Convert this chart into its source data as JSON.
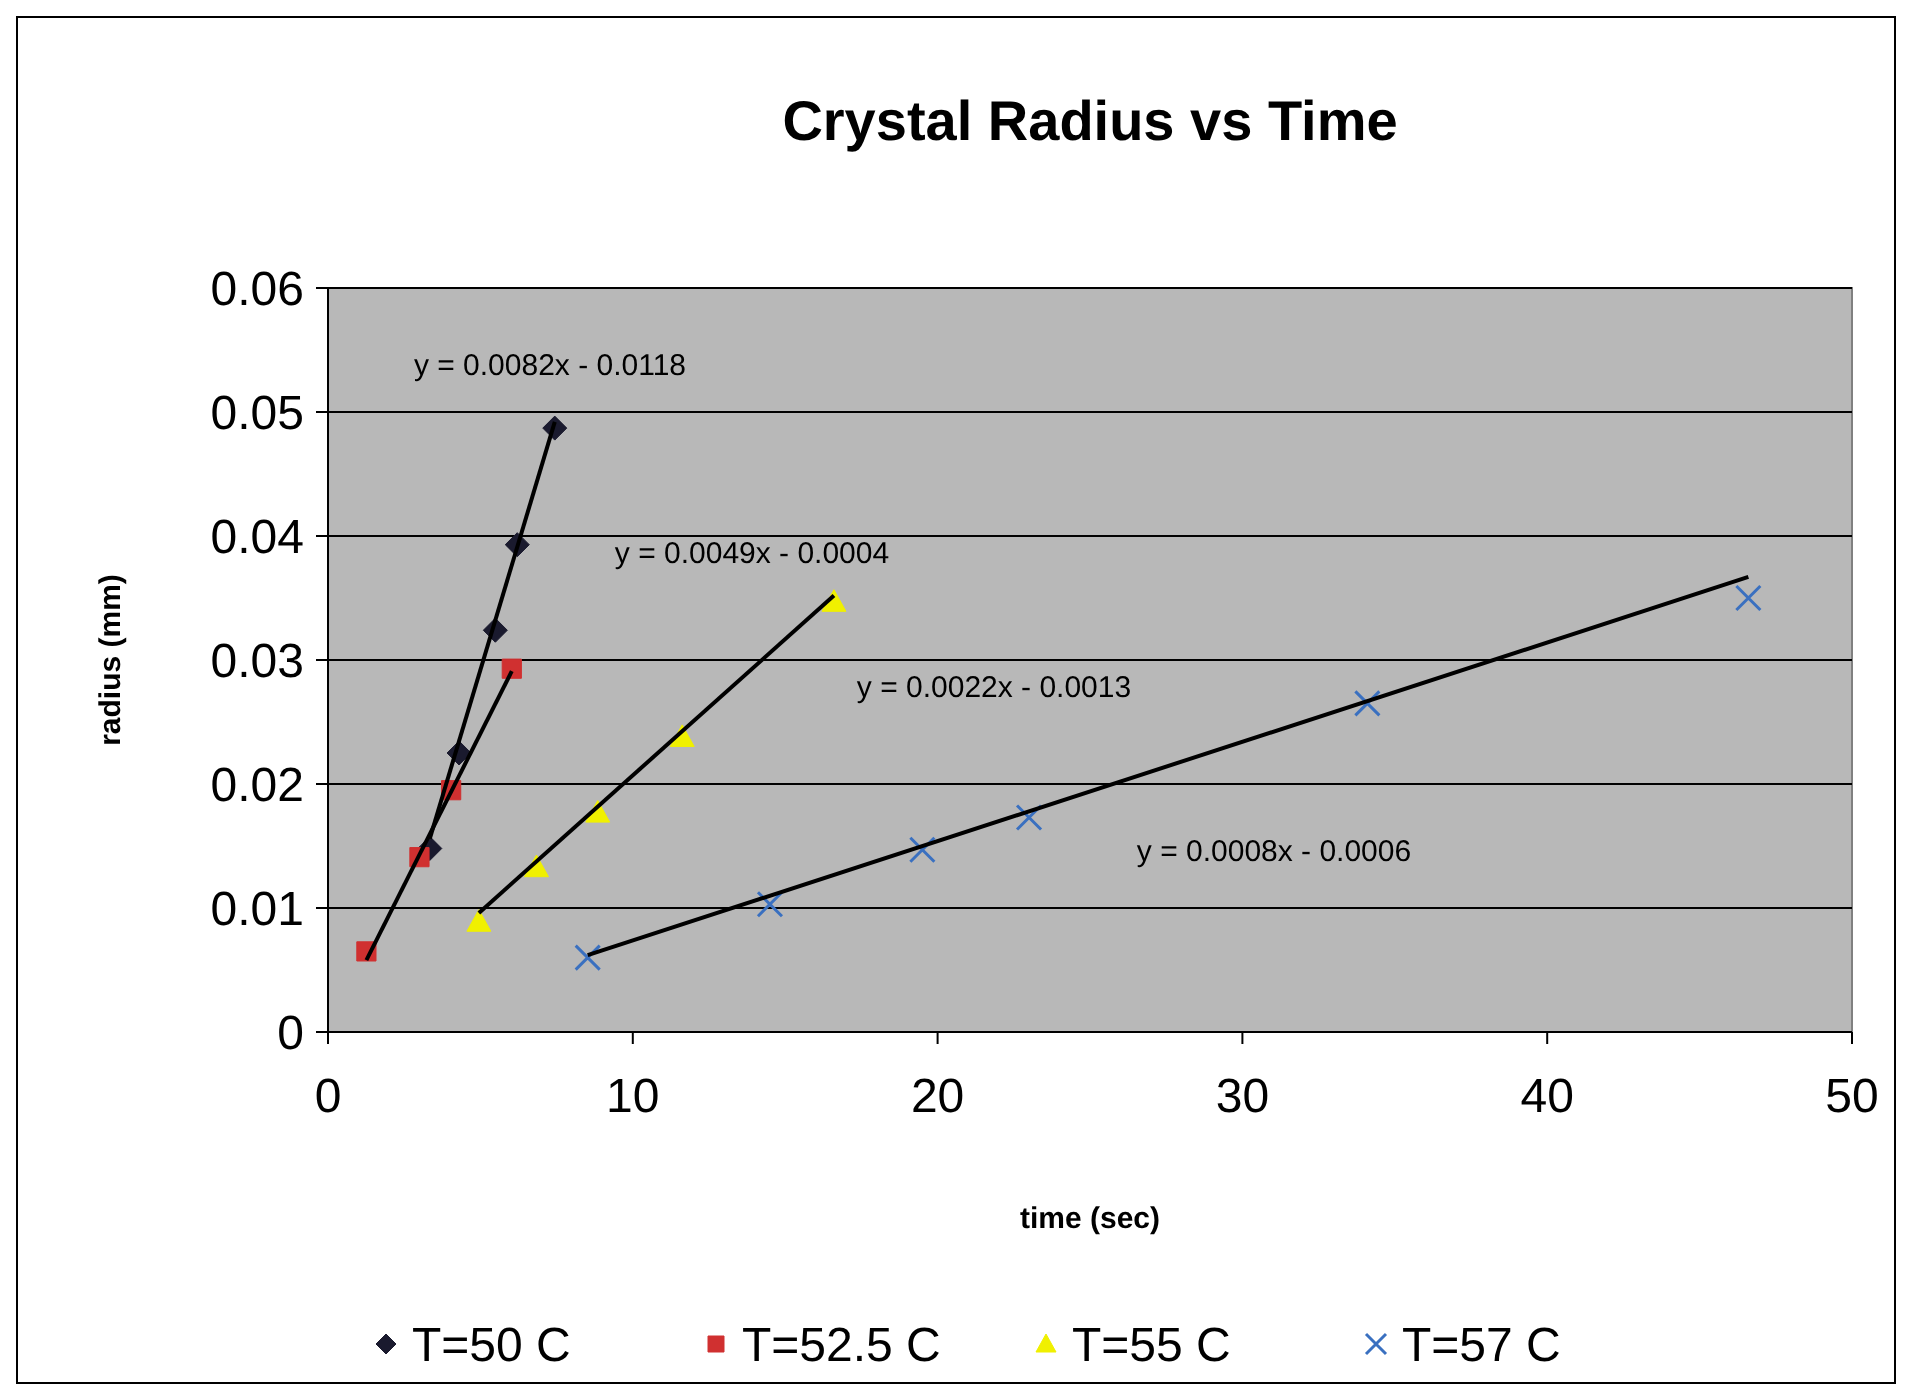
{
  "chart_data": {
    "type": "scatter",
    "title": "Crystal Radius vs Time",
    "xlabel": "time (sec)",
    "ylabel": "radius (mm)",
    "xlim": [
      0,
      50
    ],
    "xticks": [
      0,
      10,
      20,
      30,
      40,
      50
    ],
    "ylim": [
      0,
      0.06
    ],
    "yticks": [
      0,
      0.01,
      0.02,
      0.03,
      0.04,
      0.05,
      0.06
    ],
    "grid": "y",
    "legend": "bottom",
    "series": [
      {
        "name": "T=50 C",
        "color": "#1a1a2e",
        "marker": "diamond",
        "x": [
          3.34,
          4.3,
          5.49,
          6.21,
          7.44
        ],
        "values": [
          0.0148,
          0.0225,
          0.0324,
          0.0393,
          0.0487
        ]
      },
      {
        "name": "T=52.5 C",
        "color": "#d03030",
        "marker": "square",
        "x": [
          1.26,
          3.0,
          4.04,
          6.03
        ],
        "values": [
          0.0065,
          0.0141,
          0.0195,
          0.0293
        ]
      },
      {
        "name": "T=55 C",
        "color": "#f0f000",
        "marker": "triangle",
        "x": [
          4.95,
          6.84,
          8.85,
          11.62,
          16.6
        ],
        "values": [
          0.0089,
          0.0133,
          0.0177,
          0.0238,
          0.0347
        ]
      },
      {
        "name": "T=57 C",
        "color": "#3a70c0",
        "marker": "cross",
        "x": [
          8.52,
          14.5,
          19.5,
          23.0,
          34.1,
          46.6
        ],
        "values": [
          0.006,
          0.0103,
          0.0147,
          0.0173,
          0.0265,
          0.035
        ]
      },
      {
        "type": "line",
        "color": "#000000",
        "marker": "none",
        "x": [
          3.34,
          7.44
        ],
        "values": [
          0.0156,
          0.0492
        ]
      },
      {
        "type": "line",
        "color": "#000000",
        "marker": "none",
        "x": [
          1.26,
          6.03
        ],
        "values": [
          0.0058,
          0.0291
        ]
      },
      {
        "type": "line",
        "color": "#000000",
        "marker": "none",
        "x": [
          4.95,
          16.6
        ],
        "values": [
          0.0096,
          0.0352
        ]
      },
      {
        "type": "line",
        "color": "#000000",
        "marker": "none",
        "x": [
          8.52,
          46.6
        ],
        "values": [
          0.0062,
          0.0367
        ]
      }
    ],
    "annotations": [
      "y = 0.0082x - 0.0118",
      "y = 0.0049x - 0.0004",
      "y = 0.0022x - 0.0013",
      "y = 0.0008x - 0.0006"
    ]
  }
}
